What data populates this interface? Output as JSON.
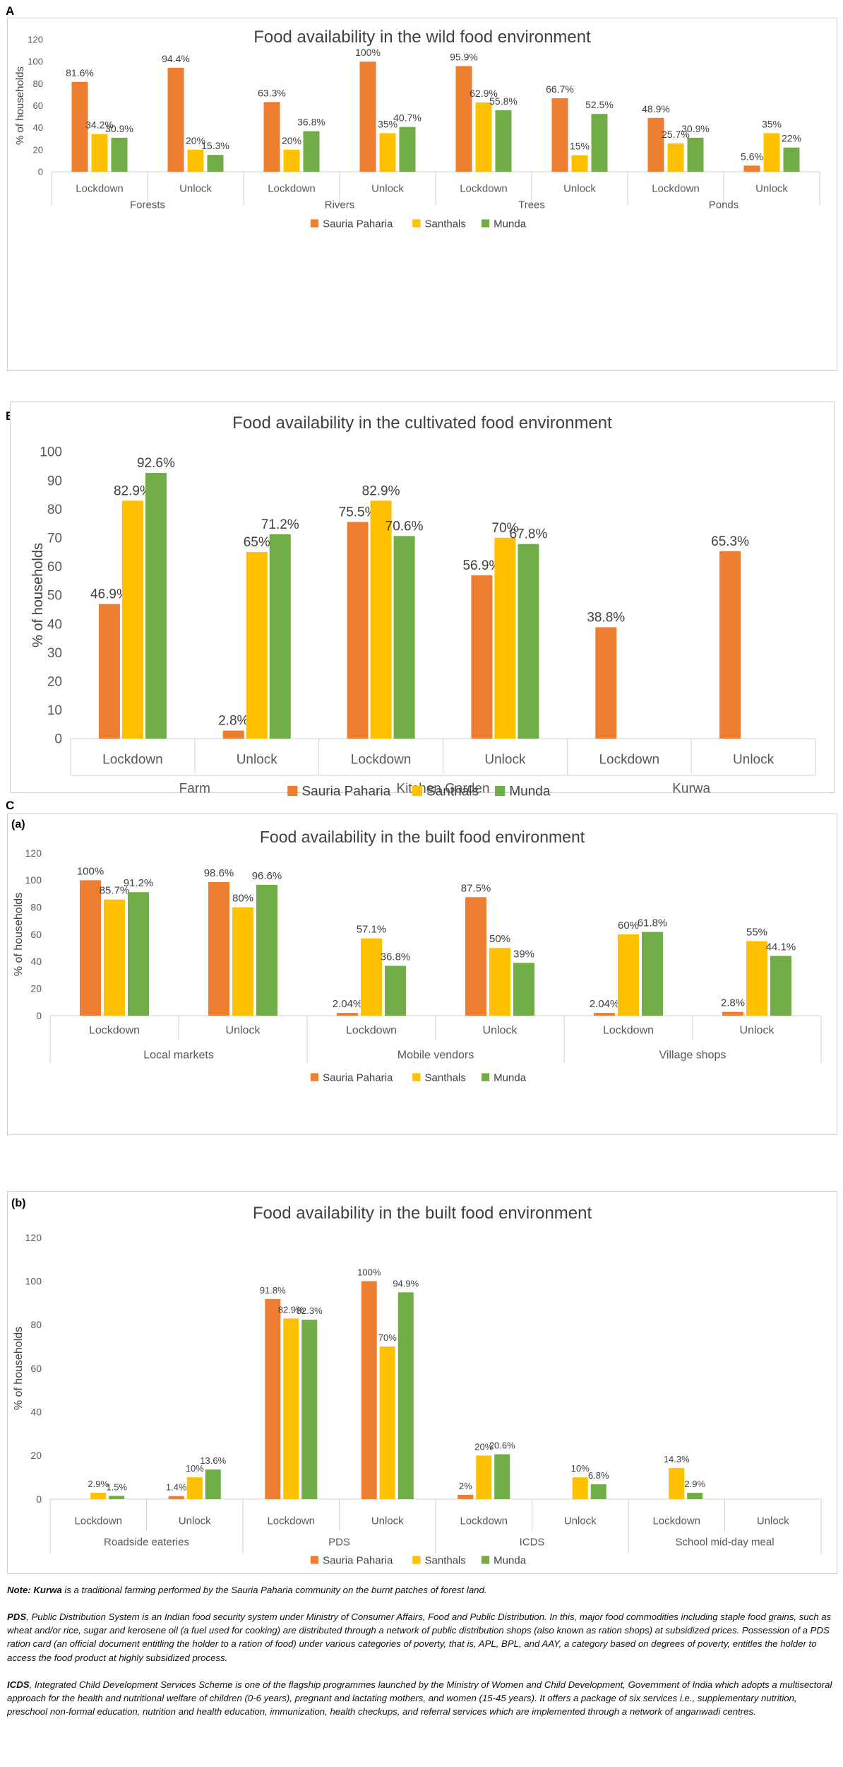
{
  "panel_labels": {
    "a": "A",
    "b": "B",
    "c": "C",
    "c_a": "(a)",
    "c_b": "(b)"
  },
  "colors": {
    "Sauria Paharia": "#ED7D31",
    "Santhals": "#FFC000",
    "Munda": "#70AD47"
  },
  "chart_data": [
    {
      "type": "bar",
      "title": "Food availability in the wild food environment",
      "ylabel": "% of households",
      "ylim": [
        0,
        120
      ],
      "yticks": [
        0,
        20,
        40,
        60,
        80,
        100,
        120
      ],
      "groups": [
        "Forests",
        "Rivers",
        "Trees",
        "Ponds"
      ],
      "categories": [
        "Lockdown",
        "Unlock",
        "Lockdown",
        "Unlock",
        "Lockdown",
        "Unlock",
        "Lockdown",
        "Unlock"
      ],
      "series": [
        {
          "name": "Sauria Paharia",
          "values": [
            81.6,
            94.4,
            63.3,
            100,
            95.9,
            66.7,
            48.9,
            5.6
          ],
          "labels": [
            "81.6%",
            "94.4%",
            "63.3%",
            "100%",
            "95.9%",
            "66.7%",
            "48.9%",
            "5.6%"
          ]
        },
        {
          "name": "Santhals",
          "values": [
            34.2,
            20,
            20,
            35,
            62.9,
            15,
            25.7,
            35
          ],
          "labels": [
            "34.2%",
            "20%",
            "20%",
            "35%",
            "62.9%",
            "15%",
            "25.7%",
            "35%"
          ]
        },
        {
          "name": "Munda",
          "values": [
            30.9,
            15.3,
            36.8,
            40.7,
            55.8,
            52.5,
            30.9,
            22
          ],
          "labels": [
            "30.9%",
            "15.3%",
            "36.8%",
            "40.7%",
            "55.8%",
            "52.5%",
            "30.9%",
            "22%"
          ]
        }
      ]
    },
    {
      "type": "bar",
      "title": "Food availability in the cultivated food environment",
      "ylabel": "% of households",
      "ylim": [
        0,
        100
      ],
      "yticks": [
        0,
        10,
        20,
        30,
        40,
        50,
        60,
        70,
        80,
        90,
        100
      ],
      "groups": [
        "Farm",
        "Kitchen Garden",
        "Kurwa"
      ],
      "categories": [
        "Lockdown",
        "Unlock",
        "Lockdown",
        "Unlock",
        "Lockdown",
        "Unlock"
      ],
      "series": [
        {
          "name": "Sauria Paharia",
          "values": [
            46.9,
            2.8,
            75.5,
            56.9,
            38.8,
            65.3
          ],
          "labels": [
            "46.9%",
            "2.8%",
            "75.5%",
            "56.9%",
            "38.8%",
            "65.3%"
          ]
        },
        {
          "name": "Santhals",
          "values": [
            82.9,
            65,
            82.9,
            70,
            null,
            null
          ],
          "labels": [
            "82.9%",
            "65%",
            "82.9%",
            "70%",
            null,
            null
          ]
        },
        {
          "name": "Munda",
          "values": [
            92.6,
            71.2,
            70.6,
            67.8,
            null,
            null
          ],
          "labels": [
            "92.6%",
            "71.2%",
            "70.6%",
            "67.8%",
            null,
            null
          ]
        }
      ]
    },
    {
      "type": "bar",
      "title": "Food availability in the built food environment",
      "ylabel": "% of households",
      "ylim": [
        0,
        120
      ],
      "yticks": [
        0,
        20,
        40,
        60,
        80,
        100,
        120
      ],
      "groups": [
        "Local markets",
        "Mobile vendors",
        "Village shops"
      ],
      "categories": [
        "Lockdown",
        "Unlock",
        "Lockdown",
        "Unlock",
        "Lockdown",
        "Unlock"
      ],
      "series": [
        {
          "name": "Sauria Paharia",
          "values": [
            100,
            98.6,
            2.04,
            87.5,
            2.04,
            2.8
          ],
          "labels": [
            "100%",
            "98.6%",
            "2.04%",
            "87.5%",
            "2.04%",
            "2.8%"
          ]
        },
        {
          "name": "Santhals",
          "values": [
            85.7,
            80,
            57.1,
            50,
            60,
            55
          ],
          "labels": [
            "85.7%",
            "80%",
            "57.1%",
            "50%",
            "60%",
            "55%"
          ]
        },
        {
          "name": "Munda",
          "values": [
            91.2,
            96.6,
            36.8,
            39,
            61.8,
            44.1
          ],
          "labels": [
            "91.2%",
            "96.6%",
            "36.8%",
            "39%",
            "61.8%",
            "44.1%"
          ]
        }
      ]
    },
    {
      "type": "bar",
      "title": "Food availability in the built food environment",
      "ylabel": "% of households",
      "ylim": [
        0,
        120
      ],
      "yticks": [
        0,
        20,
        40,
        60,
        80,
        100,
        120
      ],
      "groups": [
        "Roadside eateries",
        "PDS",
        "ICDS",
        "School mid-day meal"
      ],
      "categories": [
        "Lockdown",
        "Unlock",
        "Lockdown",
        "Unlock",
        "Lockdown",
        "Unlock",
        "Lockdown",
        "Unlock"
      ],
      "series": [
        {
          "name": "Sauria Paharia",
          "values": [
            null,
            1.4,
            91.8,
            100,
            2,
            null,
            null,
            null
          ],
          "labels": [
            null,
            "1.4%",
            "91.8%",
            "100%",
            "2%",
            null,
            null,
            null
          ]
        },
        {
          "name": "Santhals",
          "values": [
            2.9,
            10,
            82.9,
            70,
            20,
            10,
            14.3,
            null
          ],
          "labels": [
            "2.9%",
            "10%",
            "82.9%",
            "70%",
            "20%",
            "10%",
            "14.3%",
            null
          ]
        },
        {
          "name": "Munda",
          "values": [
            1.5,
            13.6,
            82.3,
            94.9,
            20.6,
            6.8,
            2.9,
            null
          ],
          "labels": [
            "1.5%",
            "13.6%",
            "82.3%",
            "94.9%",
            "20.6%",
            "6.8%",
            "2.9%",
            null
          ]
        }
      ]
    }
  ],
  "notes": {
    "note_lead": "Note: Kurwa",
    "note_text": " is a traditional farming performed by the Sauria Paharia community on the burnt patches of forest land.",
    "pds_lead": "PDS",
    "pds_text": ", Public Distribution System is an Indian food security system under Ministry of Consumer Affairs, Food and Public Distribution. In this, major food commodities including staple food grains, such as wheat and/or rice, sugar and kerosene oil (a fuel used for cooking) are distributed through a network of public distribution shops (also known as ration shops) at subsidized prices. Possession of a PDS ration card (an official document entitling the holder to a ration of food) under various categories of poverty, that is, APL, BPL, and AAY, a category based on degrees of poverty, entitles the holder to access the food product at highly subsidized process.",
    "icds_lead": "ICDS",
    "icds_text": ", Integrated Child Development Services Scheme is one of the flagship programmes launched by the Ministry of Women and Child Development, Government of India which adopts a multisectoral approach for the health and nutritional welfare of children (0-6 years), pregnant and lactating mothers, and women (15-45 years). It offers a package of six services i.e., supplementary nutrition, preschool non-formal education, nutrition and health education, immunization, health checkups, and referral services which are implemented through a network of anganwadi centres."
  }
}
